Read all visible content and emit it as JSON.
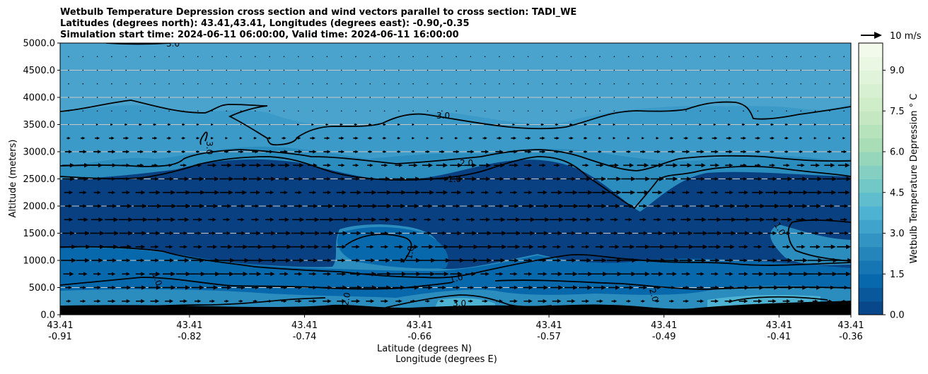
{
  "chart_data": {
    "type": "heatmap",
    "title_lines": [
      "Wetbulb Temperature Depression cross section and wind vectors parallel to cross section: TADI_WE",
      "Latitudes (degrees north): 43.41,43.41, Longitudes (degrees east): -0.90,-0.35",
      "Simulation start time: 2024-06-11 06:00:00, Valid time: 2024-06-11 16:00:00"
    ],
    "ylabel": "Altitude (meters)",
    "xlabel_lat": "Latitude (degrees N)",
    "xlabel_lon": "Longitude (degrees E)",
    "ylim": [
      0,
      5000
    ],
    "y_ticks": [
      "0.0",
      "500.0",
      "1000.0",
      "1500.0",
      "2000.0",
      "2500.0",
      "3000.0",
      "3500.0",
      "4000.0",
      "4500.0",
      "5000.0"
    ],
    "x_ticks": [
      {
        "lat": "43.41",
        "lon": "-0.91"
      },
      {
        "lat": "43.41",
        "lon": "-0.82"
      },
      {
        "lat": "43.41",
        "lon": "-0.74"
      },
      {
        "lat": "43.41",
        "lon": "-0.66"
      },
      {
        "lat": "43.41",
        "lon": "-0.57"
      },
      {
        "lat": "43.41",
        "lon": "-0.49"
      },
      {
        "lat": "43.41",
        "lon": "-0.41"
      },
      {
        "lat": "43.41",
        "lon": "-0.36"
      }
    ],
    "x_range": [
      -0.91,
      -0.36
    ],
    "grid": "horizontal",
    "colorbar": {
      "label": "Wetbulb Temperature Depression ° C",
      "range": [
        0,
        10
      ],
      "ticks": [
        "0.0",
        "1.5",
        "3.0",
        "4.5",
        "6.0",
        "7.5",
        "9.0"
      ],
      "colors": [
        "#084081",
        "#0868ac",
        "#2b8cbe",
        "#4eb3d3",
        "#7bccc4",
        "#a8ddb5",
        "#ccebc5",
        "#e0f3db",
        "#f7fcf0"
      ]
    },
    "quiver_key": "10 m/s",
    "contour_levels": [
      {
        "value": 1.0,
        "label": "1.0"
      },
      {
        "value": 2.0,
        "label": "2.0"
      },
      {
        "value": 3.0,
        "label": "3.0"
      }
    ],
    "regions": [
      {
        "band": "upper",
        "alt_range": [
          3000,
          5000
        ],
        "value": 3.2
      },
      {
        "band": "middle",
        "alt_range": [
          1000,
          3000
        ],
        "value": 0.8
      },
      {
        "band": "lower",
        "alt_range": [
          200,
          1000
        ],
        "value": 1.8
      }
    ],
    "wind": {
      "arrow_rows_alt": [
        4750,
        4500,
        4250,
        4000,
        3750,
        3500,
        3250,
        3000,
        2750,
        2500,
        2250,
        2000,
        1750,
        1500,
        1250,
        1000,
        750,
        500,
        250
      ],
      "row_speeds": [
        0.5,
        0.5,
        0.5,
        0.5,
        0.8,
        1.5,
        2.5,
        3.5,
        5.5,
        6.5,
        6.5,
        6.5,
        6.5,
        6.5,
        7,
        7.5,
        7,
        6,
        4
      ]
    }
  }
}
